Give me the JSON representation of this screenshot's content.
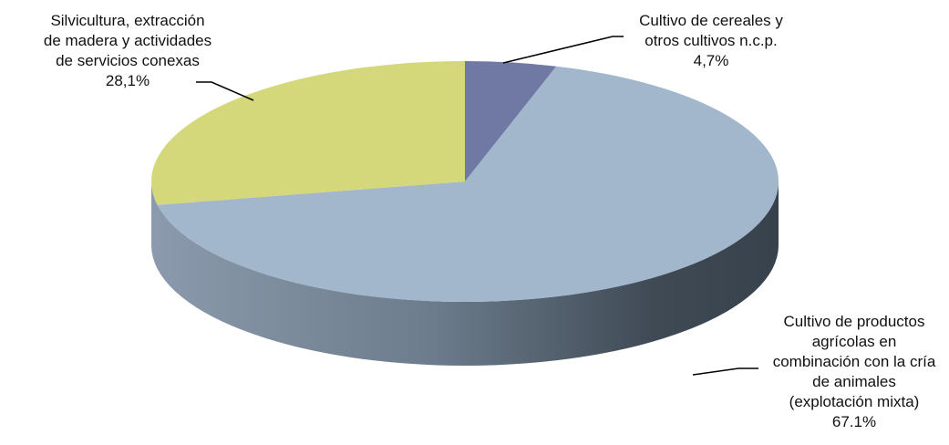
{
  "chart_data": {
    "type": "pie",
    "style": "3d",
    "title": "",
    "colors": [
      "#7079a4",
      "#a2b6cc",
      "#d4d77a"
    ],
    "slices": [
      {
        "label_lines": [
          "Cultivo de cereales y",
          "otros cultivos n.c.p."
        ],
        "pct_text": "4,7%",
        "value": 4.7
      },
      {
        "label_lines": [
          "Cultivo de productos",
          "agrícolas en",
          "combinación con la cría",
          "de animales",
          "(explotación mixta)"
        ],
        "pct_text": "67.1%",
        "value": 67.1
      },
      {
        "label_lines": [
          "Silvicultura, extracción",
          "de madera y actividades",
          "de servicios conexas"
        ],
        "pct_text": "28,1%",
        "value": 28.1
      }
    ]
  }
}
